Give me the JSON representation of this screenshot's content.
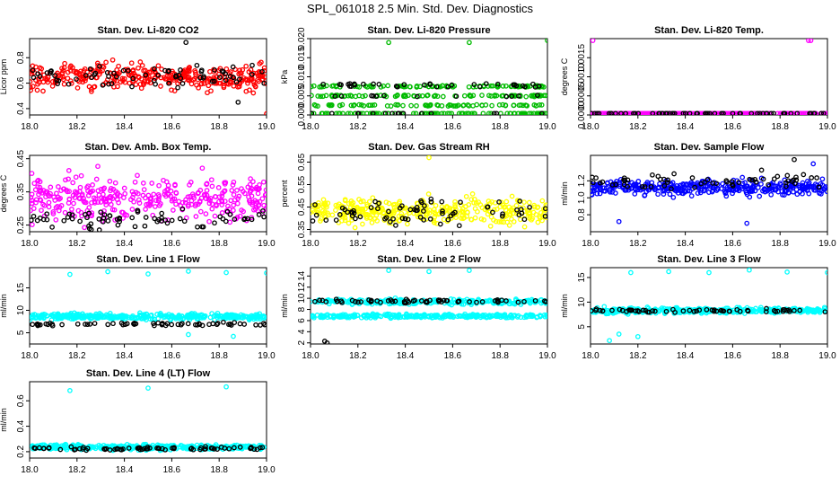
{
  "figure_title": "SPL_061018  2.5 Min. Std. Dev. Diagnostics",
  "chart_data": [
    {
      "type": "scatter",
      "title": "Stan. Dev. Li-820 CO2",
      "ylabel": "Licor ppm",
      "xlim": [
        18.0,
        19.0
      ],
      "ylim": [
        0.35,
        0.95
      ],
      "xticks": [
        "18.0",
        "18.2",
        "18.4",
        "18.6",
        "18.8",
        "19.0"
      ],
      "yticks": [
        "0.4",
        "0.6",
        "0.8"
      ],
      "ytick_values": [
        0.4,
        0.6,
        0.8
      ],
      "series": [
        {
          "name": "main",
          "color": "#ff0000",
          "center": 0.65,
          "spread": 0.09,
          "n": 340
        },
        {
          "name": "overlay",
          "color": "#000000",
          "center": 0.66,
          "spread": 0.08,
          "n": 70
        }
      ],
      "outliers": [
        {
          "x": 18.66,
          "y": 0.92,
          "color": "#000000"
        },
        {
          "x": 18.88,
          "y": 0.45,
          "color": "#000000"
        },
        {
          "x": 19.0,
          "y": 0.36,
          "color": "#ff0000"
        }
      ]
    },
    {
      "type": "scatter",
      "title": "Stan. Dev. Li-820 Pressure",
      "ylabel": "kPa",
      "xlim": [
        18.0,
        19.0
      ],
      "ylim": [
        0.0,
        0.02
      ],
      "xticks": [
        "18.0",
        "18.2",
        "18.4",
        "18.6",
        "18.8",
        "19.0"
      ],
      "yticks": [
        "0.000",
        "0.005",
        "0.010",
        "0.015",
        "0.020"
      ],
      "ytick_values": [
        0.0,
        0.005,
        0.01,
        0.015,
        0.02
      ],
      "series": [
        {
          "name": "main",
          "color": "#00bb00",
          "levels": [
            0.0,
            0.0025,
            0.005,
            0.0075
          ],
          "n": 340
        },
        {
          "name": "overlay",
          "color": "#000000",
          "levels": [
            0.0,
            0.005,
            0.0075,
            0.008
          ],
          "n": 60
        }
      ],
      "outliers": [
        {
          "x": 18.33,
          "y": 0.019,
          "color": "#00bb00"
        },
        {
          "x": 18.67,
          "y": 0.019,
          "color": "#00bb00"
        },
        {
          "x": 19.0,
          "y": 0.0195,
          "color": "#00bb00"
        }
      ]
    },
    {
      "type": "scatter",
      "title": "Stan. Dev. Li-820 Temp.",
      "ylabel": "degrees C",
      "xlim": [
        18.0,
        19.0
      ],
      "ylim": [
        0.0,
        0.002
      ],
      "xticks": [
        "18.0",
        "18.2",
        "18.4",
        "18.6",
        "18.8",
        "19.0"
      ],
      "yticks": [
        "0.0000",
        "0.0005",
        "0.0010",
        "0.0015"
      ],
      "ytick_values": [
        0.0,
        0.0005,
        0.001,
        0.0015
      ],
      "series": [
        {
          "name": "main",
          "color": "#ff00ff",
          "levels": [
            0.0
          ],
          "n": 340
        },
        {
          "name": "overlay",
          "color": "#000000",
          "levels": [
            0.0
          ],
          "n": 60
        }
      ],
      "outliers": [
        {
          "x": 18.01,
          "y": 0.00195,
          "color": "#ff00ff"
        },
        {
          "x": 18.92,
          "y": 0.00195,
          "color": "#ff00ff"
        },
        {
          "x": 18.93,
          "y": 0.00195,
          "color": "#ff00ff"
        }
      ]
    },
    {
      "type": "scatter",
      "title": "Stan. Dev. Amb. Box Temp.",
      "ylabel": "degrees C",
      "xlim": [
        18.0,
        19.0
      ],
      "ylim": [
        0.23,
        0.46
      ],
      "xticks": [
        "18.0",
        "18.2",
        "18.4",
        "18.6",
        "18.8",
        "19.0"
      ],
      "yticks": [
        "0.25",
        "0.35",
        "0.45"
      ],
      "ytick_values": [
        0.25,
        0.35,
        0.45
      ],
      "series": [
        {
          "name": "main",
          "color": "#ff00ff",
          "center": 0.33,
          "spread": 0.06,
          "n": 360
        },
        {
          "name": "overlay",
          "color": "#000000",
          "center": 0.27,
          "spread": 0.025,
          "n": 70
        }
      ],
      "outliers": []
    },
    {
      "type": "scatter",
      "title": "Stan. Dev. Gas Stream RH",
      "ylabel": "percent",
      "xlim": [
        18.0,
        19.0
      ],
      "ylim": [
        0.34,
        0.68
      ],
      "xticks": [
        "18.0",
        "18.2",
        "18.4",
        "18.6",
        "18.8",
        "19.0"
      ],
      "yticks": [
        "0.35",
        "0.45",
        "0.55",
        "0.65"
      ],
      "ytick_values": [
        0.35,
        0.45,
        0.55,
        0.65
      ],
      "series": [
        {
          "name": "main",
          "color": "#ffff00",
          "center": 0.43,
          "spread": 0.05,
          "n": 360
        },
        {
          "name": "overlay",
          "color": "#000000",
          "center": 0.43,
          "spread": 0.05,
          "n": 70
        }
      ],
      "outliers": [
        {
          "x": 18.5,
          "y": 0.67,
          "color": "#ffff00"
        }
      ]
    },
    {
      "type": "scatter",
      "title": "Stan. Dev. Sample Flow",
      "ylabel": "ml/min",
      "xlim": [
        18.0,
        19.0
      ],
      "ylim": [
        0.6,
        1.5
      ],
      "xticks": [
        "18.0",
        "18.2",
        "18.4",
        "18.6",
        "18.8",
        "19.0"
      ],
      "yticks": [
        "0.8",
        "1.0",
        "1.2"
      ],
      "ytick_values": [
        0.8,
        1.0,
        1.2
      ],
      "series": [
        {
          "name": "main",
          "color": "#0000ff",
          "center": 1.12,
          "spread": 0.08,
          "n": 360
        },
        {
          "name": "overlay",
          "color": "#000000",
          "center": 1.2,
          "spread": 0.08,
          "n": 60
        }
      ],
      "outliers": [
        {
          "x": 18.12,
          "y": 0.72,
          "color": "#0000ff"
        },
        {
          "x": 18.66,
          "y": 0.7,
          "color": "#0000ff"
        },
        {
          "x": 18.86,
          "y": 1.45,
          "color": "#000000"
        },
        {
          "x": 18.94,
          "y": 1.4,
          "color": "#0000ff"
        }
      ]
    },
    {
      "type": "scatter",
      "title": "Stan. Dev. Line 1 Flow",
      "ylabel": "ml/min",
      "xlim": [
        18.0,
        19.0
      ],
      "ylim": [
        2.5,
        19.5
      ],
      "xticks": [
        "18.0",
        "18.2",
        "18.4",
        "18.6",
        "18.8",
        "19.0"
      ],
      "yticks": [
        "5",
        "10",
        "15"
      ],
      "ytick_values": [
        5,
        10,
        15
      ],
      "series": [
        {
          "name": "main",
          "color": "#00ffff",
          "center": 8.6,
          "spread": 0.6,
          "n": 380
        },
        {
          "name": "overlay",
          "color": "#000000",
          "center": 6.9,
          "spread": 0.3,
          "n": 60
        }
      ],
      "outliers": [
        {
          "x": 18.17,
          "y": 18.0,
          "color": "#00ffff"
        },
        {
          "x": 18.33,
          "y": 18.6,
          "color": "#00ffff"
        },
        {
          "x": 18.5,
          "y": 18.1,
          "color": "#00ffff"
        },
        {
          "x": 18.67,
          "y": 18.7,
          "color": "#00ffff"
        },
        {
          "x": 18.83,
          "y": 18.4,
          "color": "#00ffff"
        },
        {
          "x": 19.0,
          "y": 18.3,
          "color": "#00ffff"
        },
        {
          "x": 18.67,
          "y": 4.6,
          "color": "#00ffff"
        },
        {
          "x": 18.86,
          "y": 4.2,
          "color": "#00ffff"
        }
      ]
    },
    {
      "type": "scatter",
      "title": "Stan. Dev. Line 2 Flow",
      "ylabel": "ml/min",
      "xlim": [
        18.0,
        19.0
      ],
      "ylim": [
        1.8,
        15.5
      ],
      "xticks": [
        "18.0",
        "18.2",
        "18.4",
        "18.6",
        "18.8",
        "19.0"
      ],
      "yticks": [
        "2",
        "4",
        "6",
        "8",
        "10",
        "12",
        "14"
      ],
      "ytick_values": [
        2,
        4,
        6,
        8,
        10,
        12,
        14
      ],
      "series": [
        {
          "name": "upper",
          "color": "#00ffff",
          "center": 9.4,
          "spread": 0.4,
          "n": 260
        },
        {
          "name": "lower",
          "color": "#00ffff",
          "center": 6.8,
          "spread": 0.3,
          "n": 260
        },
        {
          "name": "overlay",
          "color": "#000000",
          "center": 9.5,
          "spread": 0.3,
          "n": 60
        }
      ],
      "outliers": [
        {
          "x": 18.33,
          "y": 15.0,
          "color": "#00ffff"
        },
        {
          "x": 18.5,
          "y": 14.8,
          "color": "#00ffff"
        },
        {
          "x": 18.67,
          "y": 15.0,
          "color": "#00ffff"
        },
        {
          "x": 18.06,
          "y": 2.3,
          "color": "#000000"
        },
        {
          "x": 18.07,
          "y": 2.0,
          "color": "#000000"
        }
      ]
    },
    {
      "type": "scatter",
      "title": "Stan. Dev. Line 3 Flow",
      "ylabel": "ml/min",
      "xlim": [
        18.0,
        19.0
      ],
      "ylim": [
        1.5,
        17
      ],
      "xticks": [
        "18.0",
        "18.2",
        "18.4",
        "18.6",
        "18.8",
        "19.0"
      ],
      "yticks": [
        "5",
        "10",
        "15"
      ],
      "ytick_values": [
        5,
        10,
        15
      ],
      "series": [
        {
          "name": "main",
          "color": "#00ffff",
          "center": 8.3,
          "spread": 0.5,
          "n": 380
        },
        {
          "name": "overlay",
          "color": "#000000",
          "center": 8.2,
          "spread": 0.3,
          "n": 60
        }
      ],
      "outliers": [
        {
          "x": 18.17,
          "y": 16.0,
          "color": "#00ffff"
        },
        {
          "x": 18.33,
          "y": 16.2,
          "color": "#00ffff"
        },
        {
          "x": 18.5,
          "y": 16.0,
          "color": "#00ffff"
        },
        {
          "x": 18.67,
          "y": 16.5,
          "color": "#00ffff"
        },
        {
          "x": 18.83,
          "y": 16.1,
          "color": "#00ffff"
        },
        {
          "x": 19.0,
          "y": 16.0,
          "color": "#00ffff"
        },
        {
          "x": 18.08,
          "y": 2.2,
          "color": "#00ffff"
        },
        {
          "x": 18.12,
          "y": 3.5,
          "color": "#00ffff"
        },
        {
          "x": 18.2,
          "y": 3.0,
          "color": "#00ffff"
        }
      ]
    },
    {
      "type": "scatter",
      "title": "Stan. Dev. Line 4 (LT) Flow",
      "ylabel": "ml/min",
      "xlim": [
        18.0,
        19.0
      ],
      "ylim": [
        0.15,
        0.75
      ],
      "xticks": [
        "18.0",
        "18.2",
        "18.4",
        "18.6",
        "18.8",
        "19.0"
      ],
      "yticks": [
        "0.2",
        "0.4",
        "0.6"
      ],
      "ytick_values": [
        0.2,
        0.4,
        0.6
      ],
      "series": [
        {
          "name": "main",
          "color": "#00ffff",
          "center": 0.235,
          "spread": 0.018,
          "n": 380
        },
        {
          "name": "overlay",
          "color": "#000000",
          "center": 0.225,
          "spread": 0.015,
          "n": 70
        }
      ],
      "outliers": [
        {
          "x": 18.17,
          "y": 0.68,
          "color": "#00ffff"
        },
        {
          "x": 18.5,
          "y": 0.7,
          "color": "#00ffff"
        },
        {
          "x": 18.83,
          "y": 0.71,
          "color": "#00ffff"
        }
      ]
    }
  ]
}
